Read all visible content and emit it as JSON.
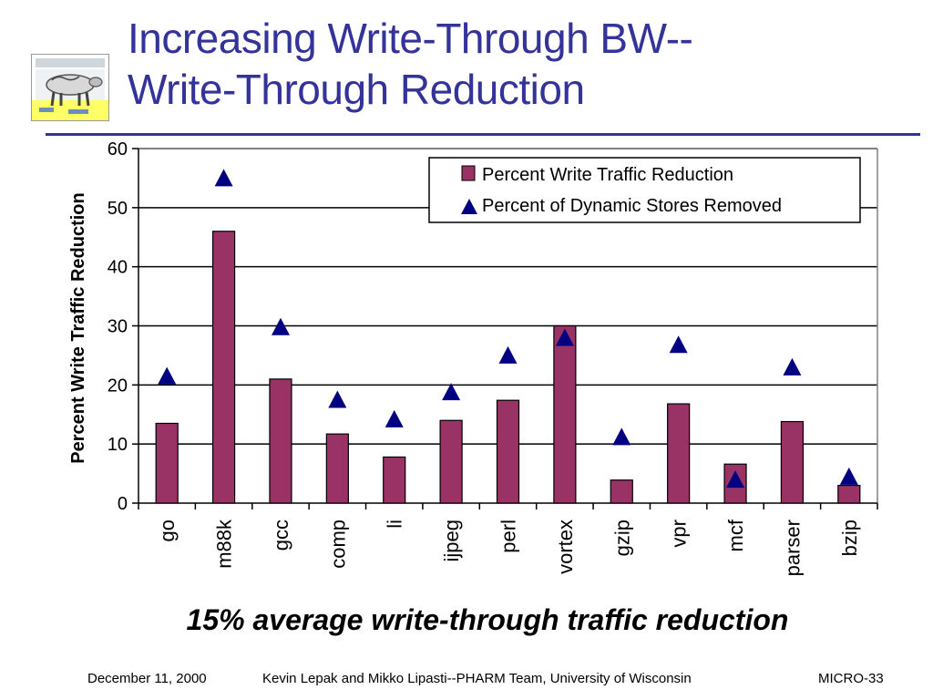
{
  "slide": {
    "title_line1": "Increasing Write-Through BW--",
    "title_line2": "Write-Through Reduction",
    "caption": "15% average write-through traffic reduction",
    "footer_date": "December 11, 2000",
    "footer_authors": "Kevin Lepak and Mikko Lipasti--PHARM Team, University of Wisconsin",
    "footer_code": "MICRO-33",
    "title_color": "#333399",
    "logo_icon": "cow-logo-icon"
  },
  "chart_data": {
    "type": "bar",
    "title": "",
    "ylabel": "Percent Write Traffic Reduction",
    "xlabel": "",
    "ylim": [
      0,
      60
    ],
    "yticks": [
      0,
      10,
      20,
      30,
      40,
      50,
      60
    ],
    "grid": true,
    "legend_position": "top-right",
    "categories": [
      "go",
      "m88k",
      "gcc",
      "comp",
      "li",
      "ijpeg",
      "perl",
      "vortex",
      "gzip",
      "vpr",
      "mcf",
      "parser",
      "bzip"
    ],
    "series": [
      {
        "name": "Percent Write Traffic Reduction",
        "type": "bar",
        "color": "#993366",
        "values": [
          13.5,
          46,
          21,
          11.7,
          7.8,
          14,
          17.4,
          30,
          3.9,
          16.8,
          6.6,
          13.8,
          3
        ]
      },
      {
        "name": "Percent of Dynamic Stores Removed",
        "type": "marker",
        "marker": "triangle",
        "color": "#000080",
        "values": [
          21.5,
          55,
          29.8,
          17.5,
          14.2,
          18.8,
          25,
          28,
          11.2,
          26.8,
          4,
          23,
          4.5
        ]
      }
    ]
  }
}
